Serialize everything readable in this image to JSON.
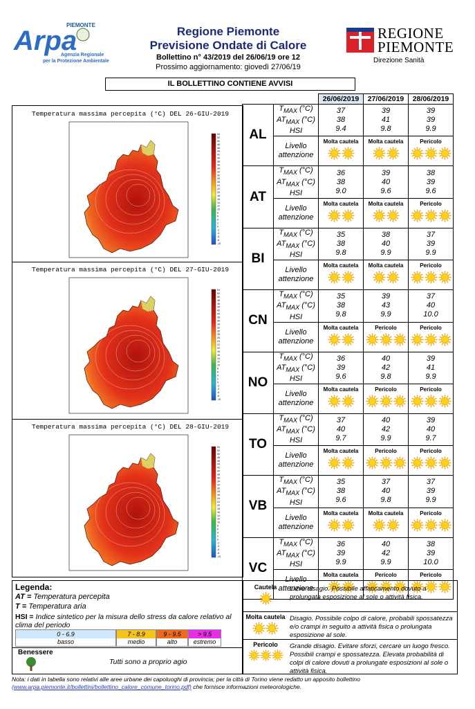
{
  "header": {
    "logo_top": "PIEMONTE",
    "logo_main": "Arpa",
    "logo_sub1": "Agenzia Regionale",
    "logo_sub2": "per la Protezione Ambientale",
    "title1": "Regione Piemonte",
    "title2": "Previsione Ondate di Calore",
    "bulletin": "Bollettino n° 43/2019 del 26/06/19 ore 12",
    "next_update": "Prossimo aggiornamento: giovedì 27/06/19",
    "region_logo_line1": "REGIONE",
    "region_logo_line2": "PIEMONTE",
    "region_logo_sub": "Direzione Sanità",
    "notice": "IL BOLLETTINO CONTIENE AVVISI"
  },
  "maps": [
    {
      "title": "Temperatura massima percepita (°C) DEL 26-GIU-2019",
      "intensity": 0.55
    },
    {
      "title": "Temperatura massima percepita (°C) DEL 27-GIU-2019",
      "intensity": 0.75
    },
    {
      "title": "Temperatura massima percepita (°C) DEL 28-GIU-2019",
      "intensity": 0.7
    }
  ],
  "colorbar_labels": [
    "54",
    "52",
    "50",
    "48",
    "46",
    "44",
    "42",
    "40",
    "38",
    "36",
    "34",
    "32",
    "30",
    "28",
    "26",
    "24",
    "22",
    "20",
    "18",
    "16",
    "14",
    "12",
    "10",
    "8",
    "6",
    "4",
    "2",
    "0",
    "-2",
    "-4",
    "-6",
    "-8",
    "-10"
  ],
  "dates": [
    "26/06/2019",
    "27/06/2019",
    "28/06/2019"
  ],
  "row_labels": {
    "tmax": "T",
    "tmax_sub": "MAX",
    "tmax_unit": "(°C)",
    "atmax": "AT",
    "atmax_sub": "MAX",
    "atmax_unit": "(°C)",
    "hsi": "HSI",
    "level": "Livello attenzione"
  },
  "provinces": [
    {
      "code": "AL",
      "tmax": [
        "37",
        "39",
        "39"
      ],
      "atmax": [
        "38",
        "41",
        "39"
      ],
      "hsi": [
        "9.4",
        "9.8",
        "9.9"
      ],
      "levels": [
        "Molta cautela",
        "Molta cautela",
        "Pericolo"
      ]
    },
    {
      "code": "AT",
      "tmax": [
        "36",
        "39",
        "38"
      ],
      "atmax": [
        "38",
        "40",
        "39"
      ],
      "hsi": [
        "9.0",
        "9.6",
        "9.6"
      ],
      "levels": [
        "Molta cautela",
        "Molta cautela",
        "Pericolo"
      ]
    },
    {
      "code": "BI",
      "tmax": [
        "35",
        "38",
        "37"
      ],
      "atmax": [
        "38",
        "40",
        "39"
      ],
      "hsi": [
        "9.8",
        "9.9",
        "9.9"
      ],
      "levels": [
        "Molta cautela",
        "Molta cautela",
        "Pericolo"
      ]
    },
    {
      "code": "CN",
      "tmax": [
        "35",
        "39",
        "37"
      ],
      "atmax": [
        "38",
        "43",
        "40"
      ],
      "hsi": [
        "9.8",
        "9.9",
        "10.0"
      ],
      "levels": [
        "Molta cautela",
        "Pericolo",
        "Pericolo"
      ]
    },
    {
      "code": "NO",
      "tmax": [
        "36",
        "40",
        "39"
      ],
      "atmax": [
        "39",
        "42",
        "41"
      ],
      "hsi": [
        "9.6",
        "9.8",
        "9.9"
      ],
      "levels": [
        "Molta cautela",
        "Pericolo",
        "Pericolo"
      ]
    },
    {
      "code": "TO",
      "tmax": [
        "37",
        "40",
        "39"
      ],
      "atmax": [
        "40",
        "42",
        "40"
      ],
      "hsi": [
        "9.7",
        "9.9",
        "9.7"
      ],
      "levels": [
        "Molta cautela",
        "Pericolo",
        "Pericolo"
      ]
    },
    {
      "code": "VB",
      "tmax": [
        "35",
        "37",
        "37"
      ],
      "atmax": [
        "38",
        "40",
        "39"
      ],
      "hsi": [
        "9.6",
        "9.8",
        "9.9"
      ],
      "levels": [
        "Molta cautela",
        "Molta cautela",
        "Pericolo"
      ]
    },
    {
      "code": "VC",
      "tmax": [
        "36",
        "40",
        "38"
      ],
      "atmax": [
        "39",
        "42",
        "39"
      ],
      "hsi": [
        "9.9",
        "9.9",
        "10.0"
      ],
      "levels": [
        "Molta cautela",
        "Pericolo",
        "Pericolo"
      ]
    }
  ],
  "sun_counts": {
    "Cautela": 1,
    "Molta cautela": 2,
    "Pericolo": 3
  },
  "legend": {
    "heading": "Legenda:",
    "at_abbr": "AT =",
    "at_text": " Temperatura percepita",
    "t_abbr": "T =",
    "t_text": " Temperatura aria",
    "hsi_abbr": "HSI =",
    "hsi_text": " Indice sintetico per la misura dello stress da calore relativo al clima del periodo",
    "scale": [
      {
        "range": "0 - 6.9",
        "name": "basso",
        "color": "#cfe8fb"
      },
      {
        "range": "7 - 8.9",
        "name": "medio",
        "color": "#f7c21b"
      },
      {
        "range": "9 - 9.5",
        "name": "alto",
        "color": "#ef6a1a"
      },
      {
        "range": "> 9.5",
        "name": "estremo",
        "color": "#e62ee6"
      }
    ],
    "benessere_title": "Benessere",
    "benessere_text": "Tutti sono a proprio agio"
  },
  "risk_levels": [
    {
      "name": "Cautela",
      "text": "Lieve disagio. Possibile affaticamento dovuto a prolungata esposizione al sole o attività fisica."
    },
    {
      "name": "Molta cautela",
      "text": "Disagio. Possibile colpo di calore, probabili spossatezza e/o crampi in seguito a attività fisica o prolungata esposizione al sole."
    },
    {
      "name": "Pericolo",
      "text": "Grande disagio. Evitare sforzi, cercare un luogo fresco. Possibili crampi e spossatezza. Elevata probabilità di colpi di calore dovuti a prolungate esposizioni al sole o attività fisica."
    }
  ],
  "note": {
    "text1": "Nota: i dati in tabella sono relativi alle aree urbane dei capoluoghi di provincia; per la città di Torino viene redatto un apposito bollettino",
    "link": "(www.arpa.piemonte.it/bollettini/bollettino_calore_comune_torino.pdf)",
    "text2": " che fornisce informazioni meteorologiche."
  }
}
